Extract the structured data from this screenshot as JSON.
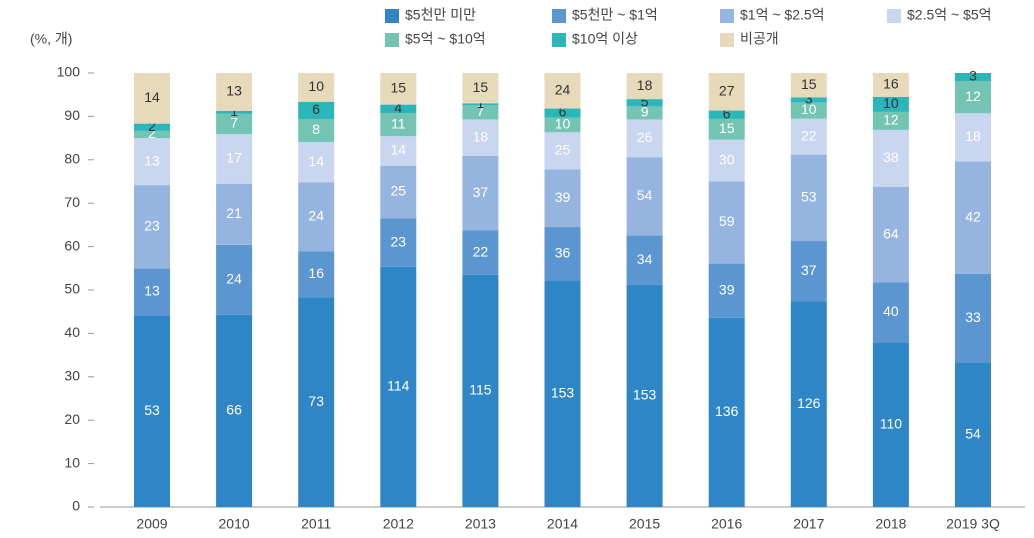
{
  "chart_data": {
    "type": "bar",
    "stacked": "percent",
    "y_label": "(%, 개)",
    "categories": [
      "2009",
      "2010",
      "2011",
      "2012",
      "2013",
      "2014",
      "2015",
      "2016",
      "2017",
      "2018",
      "2019 3Q"
    ],
    "series": [
      {
        "name": "$5천만 미만",
        "color": "#2f86c7",
        "values": [
          53,
          66,
          73,
          114,
          115,
          153,
          153,
          136,
          126,
          110,
          54
        ]
      },
      {
        "name": "$5천만 ~ $1억",
        "color": "#5c96d1",
        "values": [
          13,
          24,
          16,
          23,
          22,
          36,
          34,
          39,
          37,
          40,
          33
        ]
      },
      {
        "name": "$1억 ~ $2.5억",
        "color": "#95b5e0",
        "values": [
          23,
          21,
          24,
          25,
          37,
          39,
          54,
          59,
          53,
          64,
          42
        ]
      },
      {
        "name": "$2.5억 ~ $5억",
        "color": "#c8d6ef",
        "values": [
          13,
          17,
          14,
          14,
          18,
          25,
          26,
          30,
          22,
          38,
          18
        ]
      },
      {
        "name": "$5억 ~ $10억",
        "color": "#74c4b3",
        "values": [
          2,
          7,
          8,
          11,
          7,
          10,
          9,
          15,
          10,
          12,
          12
        ]
      },
      {
        "name": "$10억 이상",
        "color": "#2bb6b9",
        "values": [
          2,
          1,
          6,
          4,
          1,
          6,
          5,
          6,
          3,
          10,
          3
        ]
      },
      {
        "name": "비공개",
        "color": "#e6dabb",
        "values": [
          14,
          13,
          10,
          15,
          15,
          24,
          18,
          27,
          15,
          16,
          null
        ]
      }
    ],
    "label_colors": [
      "#ffffff",
      "#ffffff",
      "#ffffff",
      "#ffffff",
      "#ffffff",
      "#333333",
      "#333333"
    ],
    "ylim": [
      0,
      100
    ],
    "yticks": [
      0,
      10,
      20,
      30,
      40,
      50,
      60,
      70,
      80,
      90,
      100
    ]
  }
}
